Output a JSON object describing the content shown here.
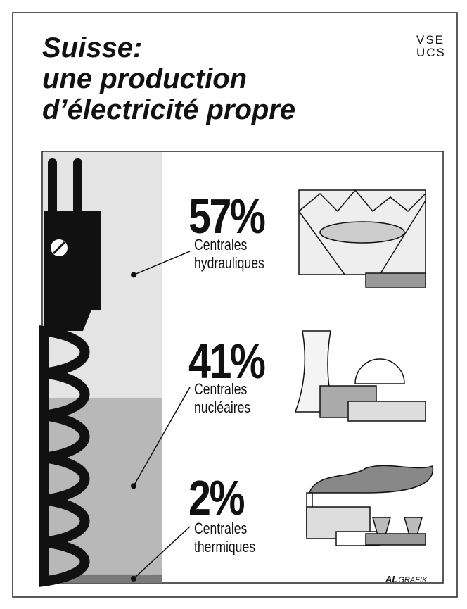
{
  "chart_data": {
    "type": "stacked_bar",
    "title": [
      "Suisse:",
      "une production",
      "d’électricité propre"
    ],
    "logo": [
      "VSE",
      "UCS"
    ],
    "credit_logo": "AL",
    "credit": "GRAFIK",
    "ylim": [
      0,
      100
    ],
    "series": [
      {
        "name": "Centrales hydrauliques",
        "values": [
          57
        ],
        "value_labels": [
          "57%"
        ],
        "color": "#e4e4e4"
      },
      {
        "name": "Centrales nucléaires",
        "values": [
          41
        ],
        "value_labels": [
          "41%"
        ],
        "color": "#b8b8b8"
      },
      {
        "name": "Centrales thermiques",
        "values": [
          2
        ],
        "value_labels": [
          "2%"
        ],
        "color": "#7a7a7a"
      }
    ]
  }
}
